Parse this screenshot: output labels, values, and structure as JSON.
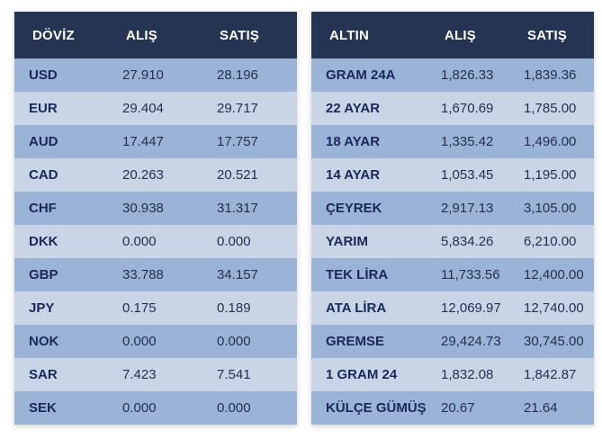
{
  "doviz": {
    "headers": [
      "DÖVİZ",
      "ALIŞ",
      "SATIŞ"
    ],
    "rows": [
      {
        "name": "USD",
        "alis": "27.910",
        "satis": "28.196"
      },
      {
        "name": "EUR",
        "alis": "29.404",
        "satis": "29.717"
      },
      {
        "name": "AUD",
        "alis": "17.447",
        "satis": "17.757"
      },
      {
        "name": "CAD",
        "alis": "20.263",
        "satis": "20.521"
      },
      {
        "name": "CHF",
        "alis": "30.938",
        "satis": "31.317"
      },
      {
        "name": "DKK",
        "alis": "0.000",
        "satis": "0.000"
      },
      {
        "name": "GBP",
        "alis": "33.788",
        "satis": "34.157"
      },
      {
        "name": "JPY",
        "alis": "0.175",
        "satis": "0.189"
      },
      {
        "name": "NOK",
        "alis": "0.000",
        "satis": "0.000"
      },
      {
        "name": "SAR",
        "alis": "7.423",
        "satis": "7.541"
      },
      {
        "name": "SEK",
        "alis": "0.000",
        "satis": "0.000"
      }
    ]
  },
  "altin": {
    "headers": [
      "ALTIN",
      "ALIŞ",
      "SATIŞ"
    ],
    "rows": [
      {
        "name": "GRAM 24A",
        "alis": "1,826.33",
        "satis": "1,839.36"
      },
      {
        "name": "22 AYAR",
        "alis": "1,670.69",
        "satis": "1,785.00"
      },
      {
        "name": "18 AYAR",
        "alis": "1,335.42",
        "satis": "1,496.00"
      },
      {
        "name": "14 AYAR",
        "alis": "1,053.45",
        "satis": "1,195.00"
      },
      {
        "name": "ÇEYREK",
        "alis": "2,917.13",
        "satis": "3,105.00"
      },
      {
        "name": "YARIM",
        "alis": "5,834.26",
        "satis": "6,210.00"
      },
      {
        "name": "TEK LİRA",
        "alis": "11,733.56",
        "satis": "12,400.00"
      },
      {
        "name": "ATA LİRA",
        "alis": "12,069.97",
        "satis": "12,740.00"
      },
      {
        "name": "GREMSE",
        "alis": "29,424.73",
        "satis": "30,745.00"
      },
      {
        "name": "1 GRAM 24",
        "alis": "1,832.08",
        "satis": "1,842.87"
      },
      {
        "name": "KÜLÇE GÜMÜŞ",
        "alis": "20.67",
        "satis": "21.64"
      }
    ]
  },
  "colors": {
    "header_bg": "#253452",
    "row_odd": "#9bb3d6",
    "row_even": "#c9d5e6",
    "name_text": "#1a2857"
  }
}
